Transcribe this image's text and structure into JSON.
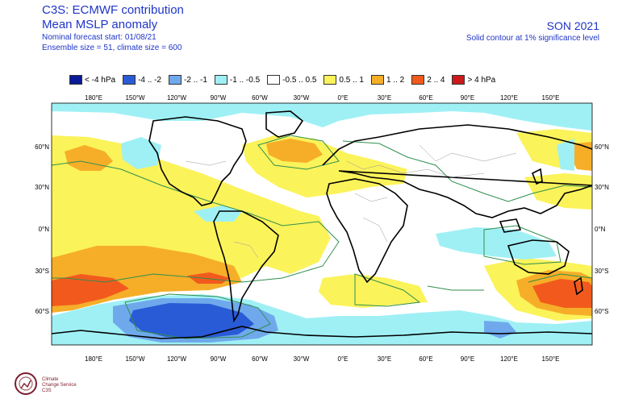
{
  "header": {
    "title": "C3S: ECMWF contribution",
    "subtitle": "Mean MSLP anomaly",
    "forecast_start": "Nominal forecast start: 01/08/21",
    "ensemble": "Ensemble size = 51, climate size = 600",
    "season": "SON 2021",
    "significance": "Solid contour at 1% significance level"
  },
  "legend": [
    {
      "label": "< -4 hPa",
      "color": "#0b1a96"
    },
    {
      "label": "-4 .. -2",
      "color": "#2a5bd6"
    },
    {
      "label": "-2 .. -1",
      "color": "#6fa9ec"
    },
    {
      "label": "-1 .. -0.5",
      "color": "#9ff0f5"
    },
    {
      "label": "-0.5 .. 0.5",
      "color": "#ffffff"
    },
    {
      "label": "0.5 .. 1",
      "color": "#fbf35a"
    },
    {
      "label": "1 .. 2",
      "color": "#f6ae28"
    },
    {
      "label": "2 .. 4",
      "color": "#f25a1d"
    },
    {
      "label": "> 4 hPa",
      "color": "#cc1a1a"
    }
  ],
  "axes": {
    "lon_labels": [
      "180°E",
      "150°W",
      "120°W",
      "90°W",
      "60°W",
      "30°W",
      "0°E",
      "30°E",
      "60°E",
      "90°E",
      "120°E",
      "150°E"
    ],
    "lat_labels": [
      "60°N",
      "30°N",
      "0°N",
      "30°S",
      "60°S"
    ]
  },
  "logo": {
    "line1": "Climate",
    "line2": "Change Service",
    "line3": "C3S"
  }
}
